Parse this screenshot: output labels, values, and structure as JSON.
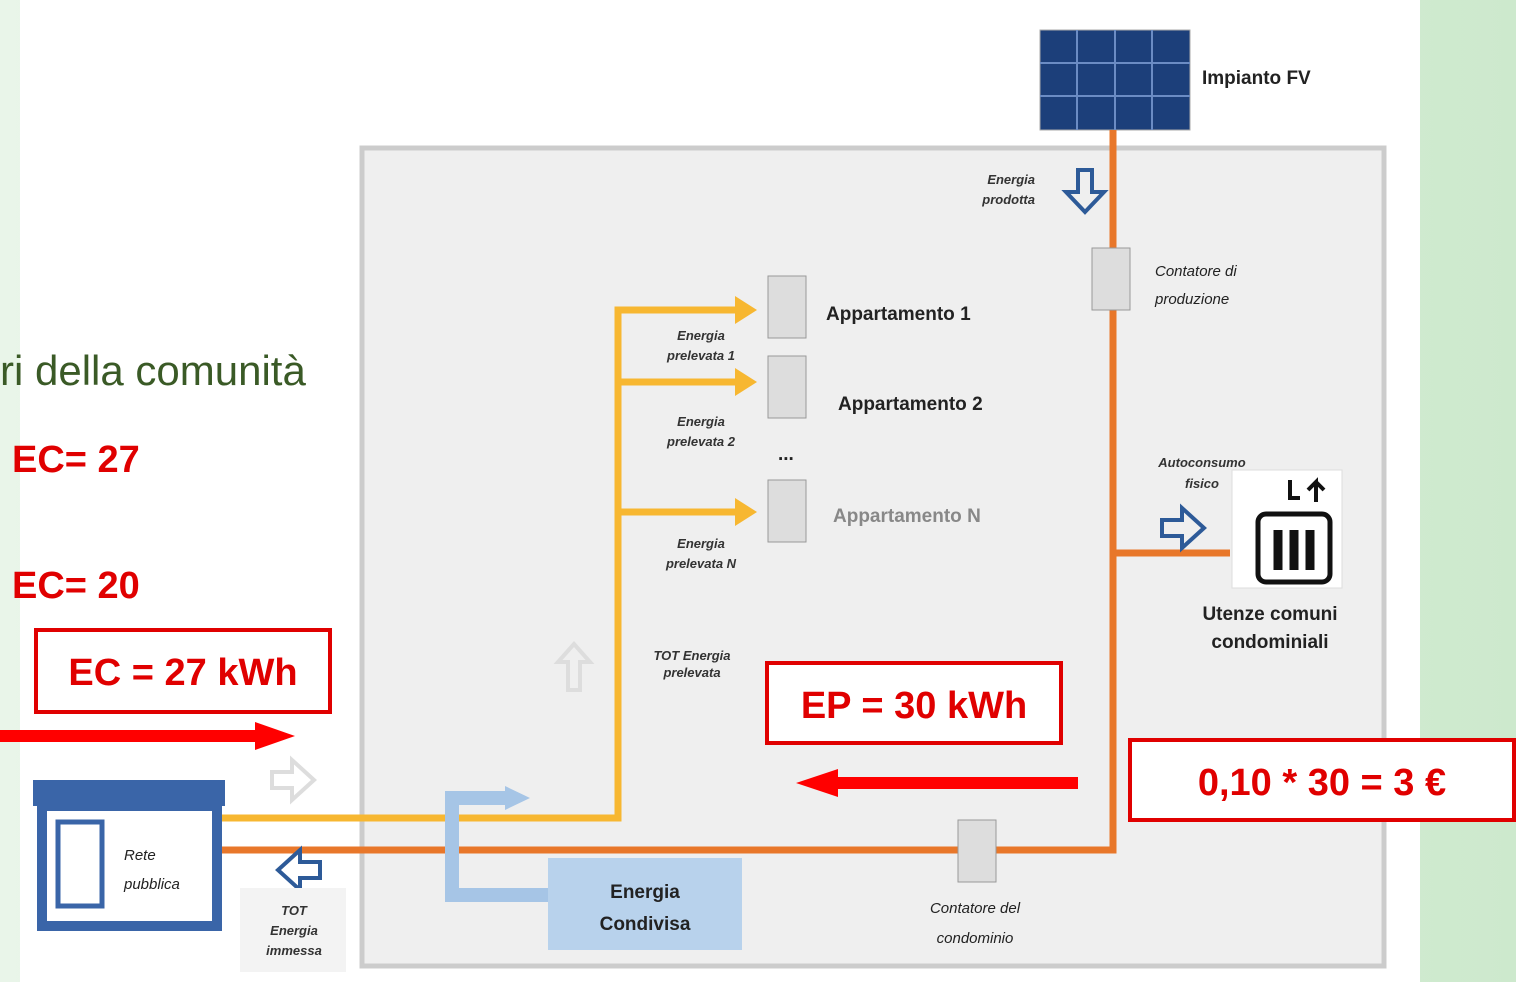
{
  "left_text": {
    "line": "ri della comunità",
    "ec1": "EC= 27",
    "ec2": "EC= 20"
  },
  "boxes": {
    "ec": "EC = 27 kWh",
    "ep": "EP = 30 kWh",
    "cost": "0,10 * 30 = 3 €"
  },
  "diagram": {
    "pv": "Impianto FV",
    "produced": [
      "Energia",
      "prodotta"
    ],
    "prod_meter": [
      "Contatore di",
      "produzione"
    ],
    "apartments": [
      "Appartamento 1",
      "Appartamento 2",
      "...",
      "Appartamento N"
    ],
    "drawn": [
      [
        "Energia",
        "prelevata 1"
      ],
      [
        "Energia",
        "prelevata 2"
      ],
      [
        "Energia",
        "prelevata N"
      ]
    ],
    "self": [
      "Autoconsumo",
      "fisico"
    ],
    "common": [
      "Utenze comuni",
      "condominiali"
    ],
    "tot_drawn": [
      "TOT Energia",
      "prelevata"
    ],
    "shared": [
      "Energia",
      "Condivisa"
    ],
    "condo_meter": [
      "Contatore del",
      "condominio"
    ],
    "tot_fed": [
      "TOT",
      "Energia",
      "immessa"
    ],
    "grid": [
      "Rete",
      "pubblica"
    ]
  }
}
